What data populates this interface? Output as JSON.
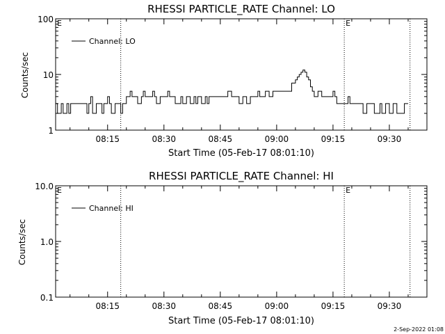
{
  "footer": {
    "date": "2-Sep-2022 01:08"
  },
  "chart_data": [
    {
      "type": "line",
      "title": "RHESSI PARTICLE_RATE Channel: LO",
      "xlabel": "Start Time (05-Feb-17 08:01:10)",
      "ylabel": "Counts/sec",
      "y_scale": "log",
      "ylim": [
        1,
        100
      ],
      "yticks": [
        "1",
        "10",
        "100"
      ],
      "xlim": [
        "08:01:10",
        "09:40:00"
      ],
      "xticks": [
        "08:15",
        "08:30",
        "08:45",
        "09:00",
        "09:15",
        "09:30"
      ],
      "markers": [
        {
          "time": "08:18:30",
          "label": ""
        },
        {
          "time": "09:18:00",
          "label": "E"
        },
        {
          "time": "09:35:30",
          "label": ""
        }
      ],
      "corner_label": "E",
      "series": [
        {
          "name": "Channel: LO",
          "x": [
            "08:01:10",
            "08:01:40",
            "08:02:10",
            "08:02:40",
            "08:03:10",
            "08:03:40",
            "08:04:10",
            "08:04:40",
            "08:05:10",
            "08:06:00",
            "08:07:00",
            "08:08:00",
            "08:09:00",
            "08:09:30",
            "08:10:00",
            "08:10:30",
            "08:11:00",
            "08:12:00",
            "08:13:00",
            "08:13:30",
            "08:14:00",
            "08:14:30",
            "08:15:00",
            "08:15:30",
            "08:16:00",
            "08:17:00",
            "08:18:00",
            "08:18:30",
            "08:19:00",
            "08:20:00",
            "08:21:00",
            "08:21:30",
            "08:22:00",
            "08:23:00",
            "08:24:00",
            "08:24:30",
            "08:25:00",
            "08:26:00",
            "08:27:00",
            "08:27:30",
            "08:28:00",
            "08:29:00",
            "08:30:00",
            "08:31:00",
            "08:31:30",
            "08:32:00",
            "08:33:00",
            "08:34:00",
            "08:34:30",
            "08:35:00",
            "08:35:30",
            "08:36:00",
            "08:37:00",
            "08:37:30",
            "08:38:00",
            "08:38:30",
            "08:39:00",
            "08:40:00",
            "08:40:30",
            "08:41:00",
            "08:41:30",
            "08:42:00",
            "08:43:00",
            "08:44:00",
            "08:45:00",
            "08:46:00",
            "08:47:00",
            "08:48:00",
            "08:49:00",
            "08:50:00",
            "08:50:30",
            "08:51:00",
            "08:52:00",
            "08:53:00",
            "08:54:00",
            "08:55:00",
            "08:55:30",
            "08:56:00",
            "08:57:00",
            "08:58:00",
            "08:59:00",
            "09:00:00",
            "09:01:00",
            "09:02:00",
            "09:03:00",
            "09:03:30",
            "09:04:00",
            "09:05:00",
            "09:05:30",
            "09:06:00",
            "09:06:30",
            "09:07:00",
            "09:07:30",
            "09:08:00",
            "09:08:30",
            "09:09:00",
            "09:09:30",
            "09:10:00",
            "09:11:00",
            "09:11:30",
            "09:12:00",
            "09:13:00",
            "09:13:30",
            "09:14:00",
            "09:15:00",
            "09:15:30",
            "09:16:00",
            "09:17:00",
            "09:18:00",
            "09:19:00",
            "09:19:30",
            "09:20:00",
            "09:21:00",
            "09:22:00",
            "09:22:30",
            "09:23:00",
            "09:24:00",
            "09:25:00",
            "09:26:00",
            "09:27:00",
            "09:27:30",
            "09:28:00",
            "09:29:00",
            "09:30:00",
            "09:31:00",
            "09:31:30",
            "09:32:00",
            "09:33:00",
            "09:34:00",
            "09:35:00"
          ],
          "values": [
            3,
            2,
            2,
            3,
            2,
            2,
            3,
            2,
            3,
            3,
            3,
            3,
            3,
            2,
            3,
            4,
            2,
            3,
            3,
            2,
            3,
            3,
            4,
            3,
            2,
            3,
            3,
            2,
            3,
            4,
            5,
            4,
            4,
            3,
            4,
            5,
            4,
            4,
            5,
            4,
            3,
            4,
            4,
            5,
            4,
            4,
            3,
            3,
            4,
            3,
            3,
            4,
            3,
            3,
            4,
            3,
            4,
            3,
            3,
            4,
            3,
            4,
            4,
            4,
            4,
            4,
            5,
            4,
            4,
            3,
            3,
            4,
            3,
            4,
            4,
            5,
            4,
            4,
            5,
            4,
            5,
            5,
            5,
            5,
            5,
            5,
            7,
            8,
            9,
            10,
            11,
            12,
            11,
            9,
            8,
            6,
            5,
            4,
            5,
            5,
            4,
            4,
            4,
            4,
            5,
            4,
            3,
            3,
            3,
            4,
            3,
            3,
            3,
            3,
            3,
            2,
            3,
            3,
            2,
            2,
            3,
            2,
            3,
            2,
            3,
            3,
            2,
            2,
            3,
            3
          ]
        }
      ]
    },
    {
      "type": "line",
      "title": "RHESSI PARTICLE_RATE Channel: HI",
      "xlabel": "Start Time (05-Feb-17 08:01:10)",
      "ylabel": "Counts/sec",
      "y_scale": "log",
      "ylim": [
        0.1,
        10
      ],
      "yticks": [
        "0.1",
        "1.0",
        "10.0"
      ],
      "xlim": [
        "08:01:10",
        "09:40:00"
      ],
      "xticks": [
        "08:15",
        "08:30",
        "08:45",
        "09:00",
        "09:15",
        "09:30"
      ],
      "markers": [
        {
          "time": "08:18:30",
          "label": ""
        },
        {
          "time": "09:18:00",
          "label": "E"
        },
        {
          "time": "09:35:30",
          "label": ""
        }
      ],
      "corner_label": "E",
      "series": [
        {
          "name": "Channel: HI",
          "x": [],
          "values": []
        }
      ]
    }
  ]
}
